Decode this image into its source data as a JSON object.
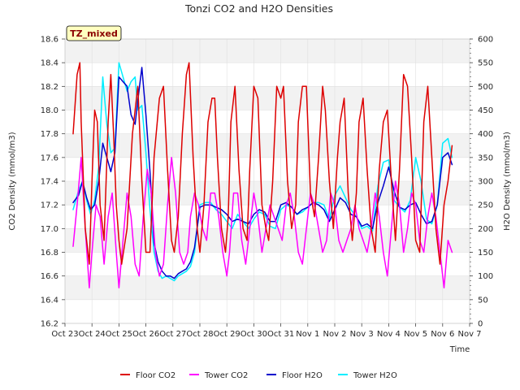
{
  "chart_data": {
    "type": "line",
    "title": "Tonzi CO2 and H2O Densities",
    "xlabel": "Time",
    "ylabel_left": "CO2 Density (mmol/m3)",
    "ylabel_right": "H2O Density (mmol/m3)",
    "badge": "TZ_mixed",
    "x_ticks": [
      "Oct 23",
      "Oct 24",
      "Oct 25",
      "Oct 26",
      "Oct 27",
      "Oct 28",
      "Oct 29",
      "Oct 30",
      "Oct 31",
      "Nov 1",
      "Nov 2",
      "Nov 3",
      "Nov 4",
      "Nov 5",
      "Nov 6",
      "Nov 7"
    ],
    "xlim": [
      0,
      15
    ],
    "ylim_left": [
      16.2,
      18.6
    ],
    "ylim_right": [
      0,
      600
    ],
    "y_ticks_left": [
      "16.2",
      "16.4",
      "16.6",
      "16.8",
      "17.0",
      "17.2",
      "17.4",
      "17.6",
      "17.8",
      "18.0",
      "18.2",
      "18.4",
      "18.6"
    ],
    "y_ticks_right": [
      "0",
      "50",
      "100",
      "150",
      "200",
      "250",
      "300",
      "350",
      "400",
      "450",
      "500",
      "550",
      "600"
    ],
    "grid": true,
    "legend_position": "bottom-center",
    "series": [
      {
        "name": "Floor CO2",
        "axis": "left",
        "color": "#dd0000",
        "x": [
          0.3,
          0.45,
          0.55,
          0.6,
          0.75,
          0.9,
          1.0,
          1.1,
          1.2,
          1.3,
          1.45,
          1.6,
          1.7,
          1.8,
          1.9,
          2.0,
          2.1,
          2.3,
          2.5,
          2.7,
          2.85,
          3.0,
          3.15,
          3.3,
          3.5,
          3.65,
          3.8,
          3.95,
          4.05,
          4.2,
          4.35,
          4.5,
          4.6,
          4.75,
          4.9,
          5.0,
          5.15,
          5.3,
          5.45,
          5.55,
          5.65,
          5.8,
          5.95,
          6.05,
          6.15,
          6.3,
          6.45,
          6.6,
          6.75,
          6.85,
          7.0,
          7.15,
          7.3,
          7.45,
          7.55,
          7.7,
          7.85,
          8.0,
          8.1,
          8.25,
          8.4,
          8.55,
          8.65,
          8.8,
          8.95,
          9.1,
          9.25,
          9.4,
          9.55,
          9.65,
          9.8,
          9.95,
          10.1,
          10.2,
          10.35,
          10.5,
          10.65,
          10.8,
          10.9,
          11.05,
          11.2,
          11.35,
          11.5,
          11.65,
          11.8,
          11.95,
          12.1,
          12.25,
          12.4,
          12.55,
          12.7,
          12.85,
          13.0,
          13.15,
          13.3,
          13.45,
          13.6,
          13.75,
          13.9,
          14.05,
          14.2,
          14.35
        ],
        "values": [
          17.8,
          18.3,
          18.4,
          17.9,
          17.0,
          16.7,
          17.4,
          18.0,
          17.9,
          17.2,
          16.9,
          17.9,
          18.3,
          17.8,
          17.2,
          16.9,
          16.7,
          17.0,
          17.8,
          18.2,
          17.4,
          16.8,
          16.8,
          17.6,
          18.1,
          18.2,
          17.5,
          16.9,
          16.8,
          17.1,
          17.8,
          18.3,
          18.4,
          17.6,
          17.0,
          16.8,
          17.2,
          17.9,
          18.1,
          18.1,
          17.6,
          17.0,
          16.8,
          17.1,
          17.9,
          18.2,
          17.5,
          17.0,
          16.9,
          17.5,
          18.2,
          18.1,
          17.2,
          17.0,
          16.9,
          17.4,
          18.2,
          18.1,
          18.2,
          17.4,
          17.0,
          17.2,
          17.9,
          18.2,
          18.2,
          17.3,
          17.1,
          17.6,
          18.2,
          18.0,
          17.4,
          17.0,
          17.6,
          17.9,
          18.1,
          17.3,
          16.9,
          17.3,
          17.9,
          18.1,
          17.5,
          17.0,
          16.8,
          17.5,
          17.9,
          18.0,
          17.4,
          16.9,
          17.5,
          18.3,
          18.2,
          17.6,
          16.9,
          16.8,
          17.9,
          18.2,
          17.6,
          17.0,
          16.7,
          17.2,
          17.4,
          17.7
        ]
      },
      {
        "name": "Tower CO2",
        "axis": "left",
        "color": "#ff00ff",
        "x": [
          0.3,
          0.45,
          0.6,
          0.75,
          0.9,
          1.0,
          1.15,
          1.3,
          1.45,
          1.6,
          1.75,
          1.9,
          2.0,
          2.15,
          2.3,
          2.45,
          2.6,
          2.75,
          2.9,
          3.05,
          3.2,
          3.35,
          3.5,
          3.65,
          3.8,
          3.95,
          4.1,
          4.25,
          4.4,
          4.55,
          4.65,
          4.8,
          4.95,
          5.1,
          5.25,
          5.4,
          5.55,
          5.7,
          5.85,
          6.0,
          6.1,
          6.25,
          6.4,
          6.55,
          6.7,
          6.85,
          7.0,
          7.15,
          7.3,
          7.45,
          7.6,
          7.75,
          7.9,
          8.05,
          8.2,
          8.35,
          8.5,
          8.65,
          8.8,
          8.95,
          9.1,
          9.25,
          9.4,
          9.55,
          9.7,
          9.85,
          10.0,
          10.15,
          10.3,
          10.45,
          10.6,
          10.75,
          10.9,
          11.05,
          11.2,
          11.35,
          11.5,
          11.65,
          11.8,
          11.95,
          12.1,
          12.25,
          12.4,
          12.55,
          12.7,
          12.85,
          13.0,
          13.15,
          13.3,
          13.45,
          13.6,
          13.75,
          13.9,
          14.05,
          14.2,
          14.35
        ],
        "values": [
          16.85,
          17.2,
          17.6,
          17.0,
          16.5,
          16.8,
          17.2,
          17.1,
          16.7,
          17.1,
          17.3,
          16.8,
          16.5,
          16.9,
          17.3,
          17.1,
          16.7,
          16.6,
          17.1,
          17.5,
          17.3,
          16.8,
          16.6,
          16.7,
          17.2,
          17.6,
          17.3,
          16.8,
          16.7,
          16.8,
          17.1,
          17.3,
          17.2,
          17.0,
          16.9,
          17.3,
          17.3,
          17.1,
          16.8,
          16.6,
          16.8,
          17.3,
          17.3,
          16.9,
          16.7,
          17.0,
          17.3,
          17.1,
          16.8,
          17.0,
          17.2,
          17.1,
          17.0,
          16.9,
          17.2,
          17.3,
          17.1,
          16.8,
          16.7,
          17.0,
          17.3,
          17.2,
          17.0,
          16.8,
          16.9,
          17.3,
          17.2,
          16.9,
          16.8,
          16.9,
          17.0,
          17.2,
          17.0,
          16.9,
          16.8,
          17.0,
          17.3,
          17.1,
          16.8,
          16.6,
          17.0,
          17.4,
          17.2,
          16.8,
          17.0,
          17.3,
          17.2,
          16.9,
          16.8,
          17.1,
          17.3,
          17.1,
          16.8,
          16.5,
          16.9,
          16.8
        ]
      },
      {
        "name": "Floor H2O",
        "axis": "right",
        "color": "#0000cc",
        "x": [
          0.3,
          0.5,
          0.65,
          0.8,
          0.95,
          1.1,
          1.25,
          1.4,
          1.55,
          1.7,
          1.85,
          2.0,
          2.15,
          2.3,
          2.45,
          2.6,
          2.7,
          2.85,
          3.0,
          3.15,
          3.3,
          3.45,
          3.6,
          3.75,
          3.9,
          4.05,
          4.2,
          4.35,
          4.5,
          4.65,
          4.8,
          5.0,
          5.2,
          5.4,
          5.6,
          5.8,
          6.0,
          6.2,
          6.4,
          6.6,
          6.8,
          7.0,
          7.2,
          7.4,
          7.6,
          7.8,
          8.0,
          8.2,
          8.4,
          8.6,
          8.8,
          9.0,
          9.2,
          9.4,
          9.6,
          9.8,
          10.0,
          10.2,
          10.4,
          10.6,
          10.8,
          11.0,
          11.2,
          11.4,
          11.6,
          11.8,
          12.0,
          12.2,
          12.4,
          12.6,
          12.8,
          13.0,
          13.2,
          13.4,
          13.6,
          13.8,
          14.0,
          14.2,
          14.35
        ],
        "values": [
          255,
          270,
          300,
          265,
          240,
          250,
          300,
          380,
          350,
          320,
          360,
          520,
          510,
          500,
          440,
          420,
          470,
          540,
          440,
          320,
          170,
          130,
          110,
          100,
          100,
          95,
          105,
          110,
          115,
          130,
          160,
          245,
          250,
          250,
          245,
          240,
          230,
          215,
          220,
          215,
          210,
          230,
          240,
          235,
          215,
          215,
          250,
          255,
          245,
          230,
          240,
          245,
          255,
          250,
          240,
          215,
          240,
          265,
          255,
          230,
          225,
          205,
          210,
          200,
          255,
          290,
          330,
          280,
          245,
          240,
          250,
          255,
          230,
          210,
          215,
          250,
          350,
          360,
          335
        ]
      },
      {
        "name": "Tower H2O",
        "axis": "right",
        "color": "#00eeff",
        "x": [
          0.3,
          0.5,
          0.65,
          0.8,
          0.95,
          1.1,
          1.25,
          1.4,
          1.55,
          1.7,
          1.85,
          2.0,
          2.15,
          2.3,
          2.45,
          2.6,
          2.7,
          2.85,
          3.0,
          3.15,
          3.3,
          3.45,
          3.6,
          3.75,
          3.9,
          4.05,
          4.2,
          4.35,
          4.5,
          4.65,
          4.8,
          5.0,
          5.2,
          5.4,
          5.6,
          5.8,
          6.0,
          6.2,
          6.4,
          6.6,
          6.8,
          7.0,
          7.2,
          7.4,
          7.6,
          7.8,
          8.0,
          8.2,
          8.4,
          8.6,
          8.8,
          9.0,
          9.2,
          9.4,
          9.6,
          9.8,
          10.0,
          10.2,
          10.4,
          10.6,
          10.8,
          11.0,
          11.2,
          11.4,
          11.6,
          11.8,
          12.0,
          12.2,
          12.4,
          12.6,
          12.8,
          13.0,
          13.2,
          13.4,
          13.6,
          13.8,
          14.0,
          14.2,
          14.35
        ],
        "values": [
          240,
          280,
          300,
          260,
          230,
          260,
          330,
          520,
          420,
          360,
          370,
          550,
          520,
          490,
          510,
          520,
          450,
          460,
          360,
          240,
          150,
          110,
          95,
          100,
          95,
          90,
          100,
          105,
          110,
          120,
          150,
          250,
          255,
          255,
          240,
          230,
          215,
          200,
          230,
          215,
          200,
          220,
          235,
          230,
          205,
          200,
          240,
          250,
          245,
          230,
          235,
          245,
          255,
          255,
          250,
          220,
          270,
          290,
          265,
          240,
          225,
          200,
          205,
          195,
          290,
          340,
          345,
          260,
          245,
          235,
          260,
          350,
          300,
          220,
          210,
          250,
          380,
          390,
          350
        ]
      }
    ]
  }
}
